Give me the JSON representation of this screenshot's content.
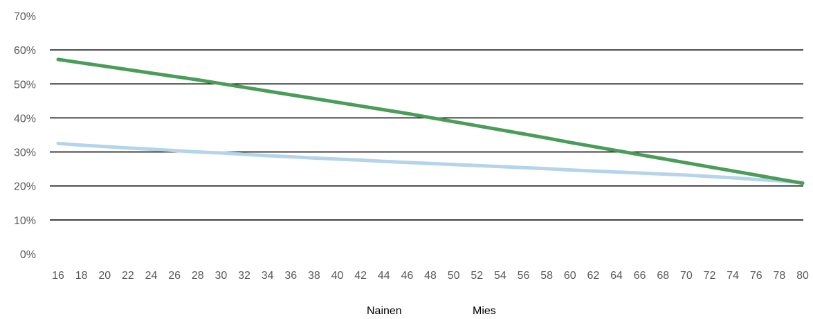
{
  "chart_data": {
    "type": "line",
    "title": "",
    "xlabel": "",
    "ylabel": "",
    "x": [
      16,
      18,
      20,
      22,
      24,
      26,
      28,
      30,
      32,
      34,
      36,
      38,
      40,
      42,
      44,
      46,
      48,
      50,
      52,
      54,
      56,
      58,
      60,
      62,
      64,
      66,
      68,
      70,
      72,
      74,
      76,
      78,
      80
    ],
    "ylim": [
      0,
      70
    ],
    "yticks": [
      "0%",
      "10%",
      "20%",
      "30%",
      "40%",
      "50%",
      "60%",
      "70%"
    ],
    "grid": true,
    "legend_position": "bottom",
    "series": [
      {
        "name": "Nainen",
        "color": "#b4d4ea",
        "values": [
          32.5,
          32.0,
          31.6,
          31.2,
          30.8,
          30.4,
          30.0,
          29.7,
          29.3,
          28.9,
          28.6,
          28.2,
          27.9,
          27.6,
          27.2,
          26.9,
          26.6,
          26.3,
          26.0,
          25.7,
          25.4,
          25.1,
          24.7,
          24.4,
          24.1,
          23.8,
          23.5,
          23.2,
          22.8,
          22.4,
          21.9,
          21.5,
          21.0
        ]
      },
      {
        "name": "Mies",
        "color": "#4a9c59",
        "values": [
          57.2,
          56.2,
          55.2,
          54.2,
          53.2,
          52.2,
          51.2,
          50.1,
          49.0,
          47.9,
          46.8,
          45.7,
          44.6,
          43.5,
          42.4,
          41.3,
          40.1,
          38.9,
          37.7,
          36.5,
          35.3,
          34.1,
          32.8,
          31.6,
          30.4,
          29.2,
          28.0,
          26.8,
          25.6,
          24.4,
          23.2,
          22.0,
          20.8
        ]
      }
    ]
  }
}
